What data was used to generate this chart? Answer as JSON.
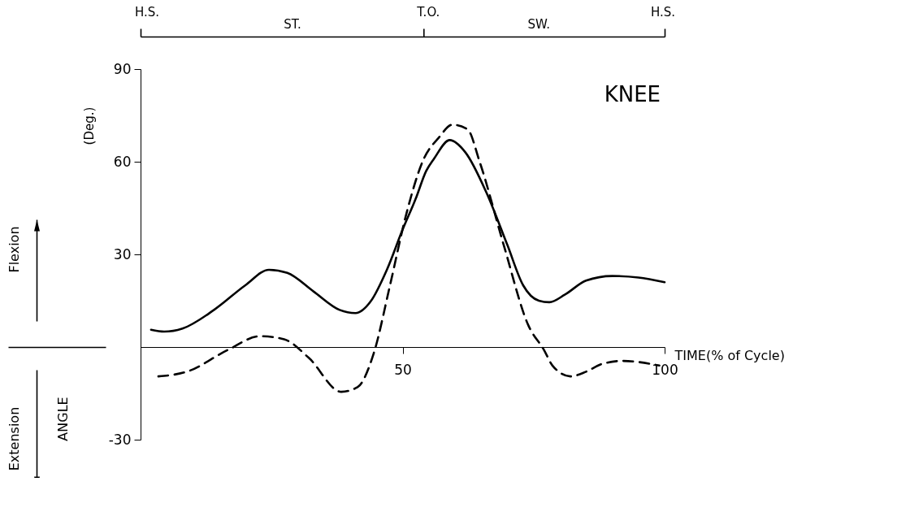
{
  "chart_data": {
    "type": "line",
    "title": "KNEE",
    "xlabel": "TIME(% of Cycle)",
    "ylabel": "ANGLE",
    "xlim": [
      0,
      100
    ],
    "xticks": [
      50,
      100
    ],
    "ylim": [
      -30,
      90
    ],
    "yticks": [
      -30,
      30,
      60,
      90
    ],
    "annotations": [
      "H.S.",
      "ST.",
      "T.O.",
      "SW.",
      "H.S.",
      "(Deg.)",
      "Flexion",
      "Extension"
    ],
    "series": [
      {
        "color": "#000000",
        "line_style": "solid",
        "x": [
          2,
          4.5,
          8,
          14,
          20,
          24.5,
          28,
          33,
          38,
          41,
          44,
          47,
          50,
          52.5,
          54.5,
          56,
          59,
          62,
          66,
          70,
          73,
          76,
          78,
          81,
          85,
          90,
          95,
          100
        ],
        "values": [
          5.6,
          5,
          6,
          12,
          20,
          25,
          24,
          18,
          12,
          11,
          15,
          25,
          38,
          48,
          57,
          61,
          67,
          63,
          50,
          33,
          20,
          15,
          14.5,
          17,
          21.5,
          23,
          22.5,
          21
        ]
      },
      {
        "color": "#000000",
        "line_style": "dashed",
        "x": [
          3.4,
          8.8,
          16.6,
          22.8,
          27.4,
          32.1,
          38.3,
          41.4,
          44.5,
          47.6,
          50.7,
          53.8,
          57,
          59.5,
          62.4,
          64.7,
          69.3,
          74,
          77,
          78.6,
          82,
          85,
          88,
          92,
          99
        ],
        "values": [
          -9.5,
          -8,
          -1,
          3.5,
          2.5,
          -3.5,
          -14.5,
          -13,
          -2,
          20,
          43,
          60,
          68,
          72,
          70.5,
          60,
          33,
          7,
          -1,
          -6,
          -9.5,
          -8,
          -5.5,
          -4.5,
          -6
        ]
      }
    ]
  }
}
